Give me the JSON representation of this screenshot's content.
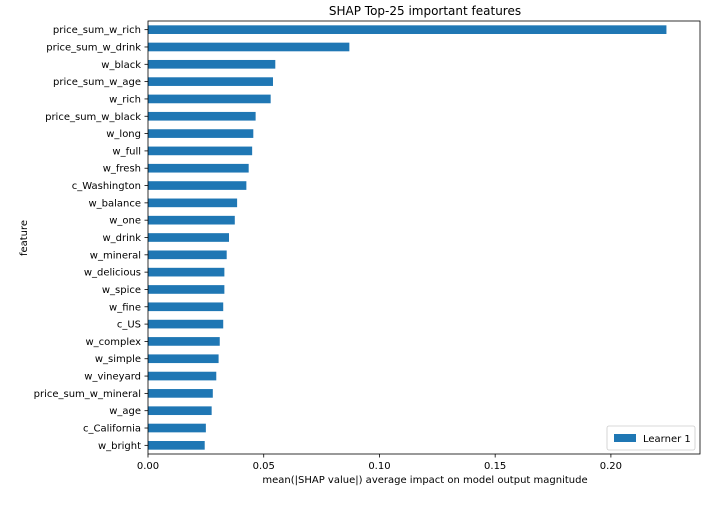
{
  "chart_data": {
    "type": "bar",
    "orientation": "horizontal",
    "title": "SHAP Top-25 important features",
    "xlabel": "mean(|SHAP value|) average impact on model output magnitude",
    "ylabel": "feature",
    "xlim": [
      0,
      0.2385
    ],
    "xticks": [
      0.0,
      0.05,
      0.1,
      0.15,
      0.2
    ],
    "xtick_labels": [
      "0.00",
      "0.05",
      "0.10",
      "0.15",
      "0.20"
    ],
    "grid": false,
    "legend": {
      "placement": "bottom-right",
      "entries": [
        "Learner 1"
      ]
    },
    "categories": [
      "price_sum_w_rich",
      "price_sum_w_drink",
      "w_black",
      "price_sum_w_age",
      "w_rich",
      "price_sum_w_black",
      "w_long",
      "w_full",
      "w_fresh",
      "c_Washington",
      "w_balance",
      "w_one",
      "w_drink",
      "w_mineral",
      "w_delicious",
      "w_spice",
      "w_fine",
      "c_US",
      "w_complex",
      "w_simple",
      "w_vineyard",
      "price_sum_w_mineral",
      "w_age",
      "c_California",
      "w_bright"
    ],
    "series": [
      {
        "name": "Learner 1",
        "color": "#1f77b4",
        "values": [
          0.224,
          0.087,
          0.055,
          0.054,
          0.053,
          0.0465,
          0.0455,
          0.045,
          0.0435,
          0.0425,
          0.0385,
          0.0375,
          0.035,
          0.034,
          0.033,
          0.033,
          0.0325,
          0.0325,
          0.031,
          0.0305,
          0.0295,
          0.028,
          0.0275,
          0.025,
          0.0245
        ]
      }
    ]
  }
}
